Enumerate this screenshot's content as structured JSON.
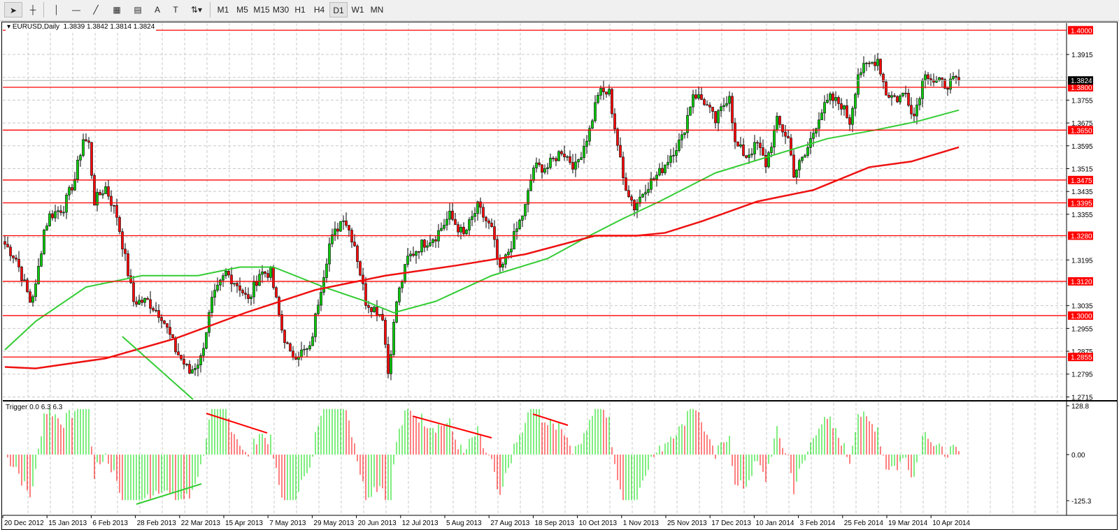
{
  "toolbar": {
    "tools": [
      "cursor-icon",
      "crosshair-icon",
      "vertical-line-icon",
      "horizontal-line-icon",
      "trendline-icon",
      "fibonacci-icon",
      "fibo-fan-icon",
      "text-icon",
      "label-icon",
      "arrows-icon"
    ],
    "text_tool": "A",
    "timeframes": [
      "M1",
      "M5",
      "M15",
      "M30",
      "H1",
      "H4",
      "D1",
      "W1",
      "MN"
    ],
    "active_timeframe": "D1"
  },
  "chart": {
    "symbol_label": "EURUSD,Daily",
    "ohlc": "1.3839 1.3842 1.3814 1.3824",
    "current_price": "1.3824",
    "indicator_label": "Trigger 0.0 6.3 6.3",
    "osc_ticks": [
      "128.8",
      "0.00",
      "-125.3"
    ]
  },
  "colors": {
    "bull": "#00cc00",
    "bear": "#ff0000",
    "level": "#ff0000",
    "ma_fast": "#33cc33",
    "ma_slow": "#ee1111"
  },
  "chart_data": {
    "type": "candlestick",
    "ylim": [
      1.2715,
      1.401
    ],
    "price_ticks": [
      "1.3915",
      "1.3755",
      "1.3675",
      "1.3595",
      "1.3515",
      "1.3435",
      "1.3355",
      "1.3195",
      "1.3035",
      "1.2955",
      "1.2875",
      "1.2795",
      "1.2715"
    ],
    "levels": [
      "1.4000",
      "1.3800",
      "1.3650",
      "1.3475",
      "1.3395",
      "1.3280",
      "1.3120",
      "1.3000",
      "1.2855"
    ],
    "dates": [
      "20 Dec 2012",
      "15 Jan 2013",
      "6 Feb 2013",
      "28 Feb 2013",
      "22 Mar 2013",
      "15 Apr 2013",
      "7 May 2013",
      "29 May 2013",
      "20 Jun 2013",
      "12 Jul 2013",
      "5 Aug 2013",
      "27 Aug 2013",
      "18 Sep 2013",
      "10 Oct 2013",
      "1 Nov 2013",
      "25 Nov 2013",
      "17 Dec 2013",
      "10 Jan 2014",
      "3 Feb 2014",
      "25 Feb 2014",
      "19 Mar 2014",
      "10 Apr 2014"
    ],
    "close_anchors": [
      [
        0,
        1.325
      ],
      [
        4,
        1.32
      ],
      [
        9,
        1.305
      ],
      [
        11,
        1.31
      ],
      [
        14,
        1.33
      ],
      [
        16,
        1.335
      ],
      [
        21,
        1.338
      ],
      [
        25,
        1.348
      ],
      [
        28,
        1.362
      ],
      [
        30,
        1.36
      ],
      [
        32,
        1.34
      ],
      [
        36,
        1.345
      ],
      [
        40,
        1.335
      ],
      [
        44,
        1.315
      ],
      [
        46,
        1.305
      ],
      [
        51,
        1.305
      ],
      [
        56,
        1.3
      ],
      [
        61,
        1.288
      ],
      [
        66,
        1.28
      ],
      [
        70,
        1.285
      ],
      [
        74,
        1.305
      ],
      [
        79,
        1.315
      ],
      [
        84,
        1.31
      ],
      [
        87,
        1.305
      ],
      [
        91,
        1.315
      ],
      [
        95,
        1.315
      ],
      [
        99,
        1.295
      ],
      [
        102,
        1.286
      ],
      [
        109,
        1.288
      ],
      [
        112,
        1.305
      ],
      [
        116,
        1.325
      ],
      [
        121,
        1.335
      ],
      [
        125,
        1.325
      ],
      [
        129,
        1.305
      ],
      [
        135,
        1.3
      ],
      [
        137,
        1.28
      ],
      [
        140,
        1.305
      ],
      [
        144,
        1.32
      ],
      [
        149,
        1.325
      ],
      [
        154,
        1.328
      ],
      [
        159,
        1.335
      ],
      [
        164,
        1.328
      ],
      [
        169,
        1.338
      ],
      [
        174,
        1.33
      ],
      [
        177,
        1.315
      ],
      [
        181,
        1.325
      ],
      [
        186,
        1.338
      ],
      [
        189,
        1.352
      ],
      [
        194,
        1.352
      ],
      [
        199,
        1.358
      ],
      [
        204,
        1.352
      ],
      [
        209,
        1.365
      ],
      [
        212,
        1.378
      ],
      [
        216,
        1.378
      ],
      [
        219,
        1.36
      ],
      [
        221,
        1.348
      ],
      [
        225,
        1.338
      ],
      [
        229,
        1.345
      ],
      [
        234,
        1.35
      ],
      [
        239,
        1.358
      ],
      [
        242,
        1.362
      ],
      [
        246,
        1.378
      ],
      [
        250,
        1.375
      ],
      [
        254,
        1.368
      ],
      [
        259,
        1.378
      ],
      [
        261,
        1.36
      ],
      [
        265,
        1.356
      ],
      [
        269,
        1.36
      ],
      [
        272,
        1.353
      ],
      [
        276,
        1.368
      ],
      [
        280,
        1.362
      ],
      [
        282,
        1.35
      ],
      [
        286,
        1.356
      ],
      [
        291,
        1.37
      ],
      [
        295,
        1.376
      ],
      [
        299,
        1.374
      ],
      [
        302,
        1.368
      ],
      [
        305,
        1.385
      ],
      [
        309,
        1.388
      ],
      [
        312,
        1.39
      ],
      [
        315,
        1.378
      ],
      [
        319,
        1.376
      ],
      [
        322,
        1.378
      ],
      [
        325,
        1.37
      ],
      [
        329,
        1.386
      ],
      [
        332,
        1.382
      ],
      [
        336,
        1.381
      ],
      [
        341,
        1.3824
      ]
    ],
    "ma_fast": [
      [
        0,
        1.288
      ],
      [
        11,
        1.298
      ],
      [
        29,
        1.31
      ],
      [
        49,
        1.314
      ],
      [
        69,
        1.314
      ],
      [
        84,
        1.317
      ],
      [
        96,
        1.317
      ],
      [
        114,
        1.31
      ],
      [
        129,
        1.305
      ],
      [
        139,
        1.301
      ],
      [
        154,
        1.305
      ],
      [
        174,
        1.314
      ],
      [
        194,
        1.32
      ],
      [
        209,
        1.328
      ],
      [
        221,
        1.334
      ],
      [
        234,
        1.34
      ],
      [
        254,
        1.35
      ],
      [
        274,
        1.356
      ],
      [
        294,
        1.362
      ],
      [
        311,
        1.365
      ],
      [
        326,
        1.368
      ],
      [
        341,
        1.372
      ]
    ],
    "ma_slow": [
      [
        0,
        1.282
      ],
      [
        11,
        1.2815
      ],
      [
        36,
        1.285
      ],
      [
        61,
        1.292
      ],
      [
        86,
        1.301
      ],
      [
        111,
        1.309
      ],
      [
        136,
        1.314
      ],
      [
        161,
        1.3175
      ],
      [
        186,
        1.3215
      ],
      [
        211,
        1.328
      ],
      [
        226,
        1.328
      ],
      [
        236,
        1.329
      ],
      [
        249,
        1.333
      ],
      [
        269,
        1.34
      ],
      [
        289,
        1.344
      ],
      [
        309,
        1.352
      ],
      [
        324,
        1.354
      ],
      [
        341,
        1.359
      ]
    ]
  }
}
